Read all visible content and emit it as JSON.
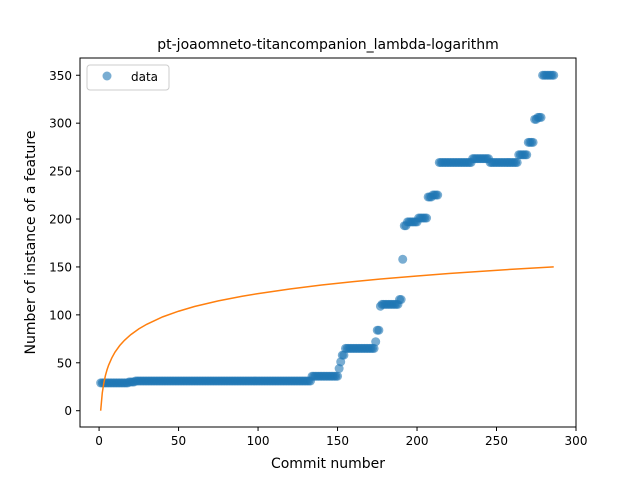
{
  "chart_data": {
    "type": "scatter",
    "title": "pt-joaomneto-titancompanion_lambda-logarithm",
    "xlabel": "Commit number",
    "ylabel": "Number of instance of a feature",
    "xlim": [
      -12,
      300
    ],
    "ylim": [
      -17,
      368
    ],
    "xticks": [
      0,
      50,
      100,
      150,
      200,
      250,
      300
    ],
    "yticks": [
      0,
      50,
      100,
      150,
      200,
      250,
      300,
      350
    ],
    "grid": false,
    "legend": {
      "placement": "upper-left",
      "entries": [
        "data"
      ]
    },
    "colors": {
      "data": "#1f77b4",
      "fit": "#ff7f0e"
    },
    "series": [
      {
        "name": "data",
        "kind": "scatter",
        "segments": [
          {
            "x_start": 1,
            "x_end": 18,
            "y": 29
          },
          {
            "x_start": 19,
            "x_end": 22,
            "y": 30
          },
          {
            "x_start": 23,
            "x_end": 133,
            "y": 31
          },
          {
            "x_start": 134,
            "x_end": 150,
            "y": 36
          },
          {
            "x_start": 151,
            "x_end": 151,
            "y": 44
          },
          {
            "x_start": 152,
            "x_end": 152,
            "y": 51
          },
          {
            "x_start": 153,
            "x_end": 154,
            "y": 58
          },
          {
            "x_start": 155,
            "x_end": 173,
            "y": 65
          },
          {
            "x_start": 174,
            "x_end": 174,
            "y": 72
          },
          {
            "x_start": 175,
            "x_end": 176,
            "y": 84
          },
          {
            "x_start": 177,
            "x_end": 177,
            "y": 109
          },
          {
            "x_start": 178,
            "x_end": 188,
            "y": 111
          },
          {
            "x_start": 189,
            "x_end": 190,
            "y": 116
          },
          {
            "x_start": 191,
            "x_end": 191,
            "y": 158
          },
          {
            "x_start": 192,
            "x_end": 193,
            "y": 193
          },
          {
            "x_start": 194,
            "x_end": 200,
            "y": 197
          },
          {
            "x_start": 201,
            "x_end": 206,
            "y": 201
          },
          {
            "x_start": 207,
            "x_end": 209,
            "y": 223
          },
          {
            "x_start": 210,
            "x_end": 213,
            "y": 225
          },
          {
            "x_start": 214,
            "x_end": 234,
            "y": 259
          },
          {
            "x_start": 235,
            "x_end": 245,
            "y": 263
          },
          {
            "x_start": 246,
            "x_end": 263,
            "y": 259
          },
          {
            "x_start": 264,
            "x_end": 269,
            "y": 267
          },
          {
            "x_start": 270,
            "x_end": 273,
            "y": 280
          },
          {
            "x_start": 274,
            "x_end": 275,
            "y": 304
          },
          {
            "x_start": 276,
            "x_end": 278,
            "y": 306
          },
          {
            "x_start": 279,
            "x_end": 286,
            "y": 350
          }
        ]
      },
      {
        "name": "",
        "kind": "line",
        "x": [
          1,
          2,
          3,
          4,
          5,
          6,
          8,
          10,
          13,
          16,
          20,
          25,
          30,
          40,
          50,
          60,
          75,
          90,
          100,
          120,
          140,
          160,
          180,
          200,
          220,
          240,
          260,
          286
        ],
        "y": [
          0,
          18.4,
          29.1,
          36.8,
          42.7,
          47.5,
          55.1,
          61.1,
          68.0,
          73.5,
          79.4,
          85.4,
          90.2,
          97.9,
          103.8,
          108.7,
          114.6,
          119.4,
          122.2,
          127.0,
          131.2,
          134.7,
          137.8,
          140.6,
          143.1,
          145.4,
          147.6,
          150.1
        ]
      }
    ]
  }
}
